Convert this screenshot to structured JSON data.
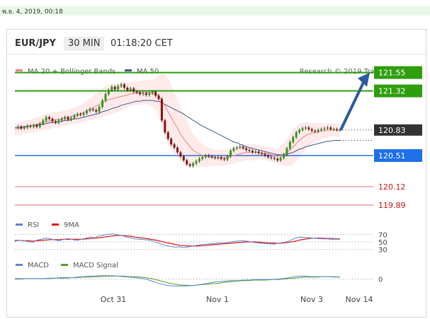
{
  "header": {
    "date_stamp": "พ.ย. 4, 2019, 00:18",
    "symbol": "EUR/JPY",
    "timeframe": "30 MIN",
    "clock": "01:18:20 CET"
  },
  "chart_data": {
    "type": "line",
    "legend": [
      {
        "label": "MA 20 + Bollinger Bands",
        "color": "#f08080"
      },
      {
        "label": "MA 50",
        "color": "#3b5a8c"
      }
    ],
    "watermark": "Research © 2019 Trading Central",
    "x_ticks": [
      "Oct 31",
      "Nov 1",
      "Nov 3",
      "Nov 14"
    ],
    "ylim": [
      119.8,
      121.75
    ],
    "price": [
      120.86,
      120.87,
      120.85,
      120.86,
      120.88,
      120.87,
      120.89,
      120.87,
      120.91,
      120.95,
      120.99,
      120.97,
      120.94,
      120.92,
      120.95,
      120.97,
      120.99,
      120.96,
      120.98,
      121.01,
      121.03,
      121.02,
      121.04,
      121.07,
      121.09,
      121.08,
      121.06,
      121.12,
      121.2,
      121.28,
      121.33,
      121.37,
      121.34,
      121.38,
      121.4,
      121.36,
      121.33,
      121.35,
      121.31,
      121.3,
      121.28,
      121.29,
      121.27,
      121.29,
      121.31,
      121.26,
      121.22,
      120.95,
      120.8,
      120.72,
      120.65,
      120.61,
      120.55,
      120.5,
      120.45,
      120.4,
      120.38,
      120.41,
      120.44,
      120.47,
      120.49,
      120.51,
      120.5,
      120.49,
      120.48,
      120.49,
      120.47,
      120.46,
      120.5,
      120.57,
      120.6,
      120.61,
      120.62,
      120.6,
      120.58,
      120.57,
      120.55,
      120.56,
      120.54,
      120.53,
      120.51,
      120.49,
      120.48,
      120.47,
      120.45,
      120.48,
      120.52,
      120.6,
      120.68,
      120.74,
      120.8,
      120.83,
      120.85,
      120.86,
      120.84,
      120.82,
      120.81,
      120.83,
      120.84,
      120.85,
      120.86,
      120.84,
      120.84,
      120.83,
      120.83
    ],
    "ma20": [
      120.84,
      120.85,
      120.85,
      120.86,
      120.87,
      120.88,
      120.89,
      120.9,
      120.91,
      120.92,
      120.93,
      120.94,
      120.95,
      120.96,
      120.96,
      120.97,
      120.98,
      120.99,
      121.0,
      121.01,
      121.02,
      121.03,
      121.05,
      121.07,
      121.09,
      121.11,
      121.13,
      121.15,
      121.17,
      121.19,
      121.21,
      121.22,
      121.23,
      121.24,
      121.25,
      121.26,
      121.27,
      121.28,
      121.29,
      121.29,
      121.3,
      121.3,
      121.3,
      121.3,
      121.29,
      121.28,
      121.26,
      121.2,
      121.13,
      121.06,
      120.99,
      120.92,
      120.85,
      120.78,
      120.72,
      120.67,
      120.62,
      120.58,
      120.55,
      120.53,
      120.51,
      120.5,
      120.49,
      120.49,
      120.48,
      120.48,
      120.48,
      120.48,
      120.49,
      120.5,
      120.51,
      120.52,
      120.53,
      120.54,
      120.55,
      120.55,
      120.55,
      120.55,
      120.55,
      120.54,
      120.54,
      120.53,
      120.52,
      120.51,
      120.5,
      120.51,
      120.52,
      120.55,
      120.58,
      120.62,
      120.66,
      120.7,
      120.73,
      120.76,
      120.78,
      120.79,
      120.8,
      120.81,
      120.82,
      120.82,
      120.83,
      120.83,
      120.83,
      120.83,
      120.83
    ],
    "ma50": [
      120.86,
      120.86,
      120.87,
      120.87,
      120.88,
      120.88,
      120.89,
      120.89,
      120.9,
      120.9,
      120.91,
      120.92,
      120.92,
      120.93,
      120.93,
      120.94,
      120.95,
      120.95,
      120.96,
      120.97,
      120.97,
      120.98,
      120.99,
      121.0,
      121.01,
      121.02,
      121.03,
      121.04,
      121.06,
      121.07,
      121.08,
      121.1,
      121.11,
      121.12,
      121.14,
      121.15,
      121.16,
      121.17,
      121.18,
      121.19,
      121.19,
      121.2,
      121.2,
      121.2,
      121.2,
      121.19,
      121.19,
      121.17,
      121.15,
      121.13,
      121.11,
      121.09,
      121.07,
      121.05,
      121.03,
      121.0,
      120.98,
      120.95,
      120.93,
      120.9,
      120.88,
      120.86,
      120.84,
      120.82,
      120.8,
      120.78,
      120.76,
      120.74,
      120.72,
      120.7,
      120.68,
      120.67,
      120.65,
      120.64,
      120.62,
      120.61,
      120.6,
      120.59,
      120.58,
      120.57,
      120.56,
      120.55,
      120.54,
      120.53,
      120.52,
      120.52,
      120.52,
      120.53,
      120.54,
      120.55,
      120.57,
      120.59,
      120.6,
      120.62,
      120.63,
      120.64,
      120.65,
      120.66,
      120.67,
      120.68,
      120.69,
      120.69,
      120.7,
      120.7,
      120.7
    ],
    "bb_width": [
      0.08,
      0.08,
      0.08,
      0.08,
      0.08,
      0.08,
      0.09,
      0.09,
      0.09,
      0.09,
      0.1,
      0.1,
      0.1,
      0.1,
      0.1,
      0.1,
      0.1,
      0.1,
      0.1,
      0.1,
      0.11,
      0.11,
      0.12,
      0.13,
      0.14,
      0.15,
      0.16,
      0.17,
      0.18,
      0.19,
      0.19,
      0.19,
      0.19,
      0.18,
      0.18,
      0.17,
      0.16,
      0.15,
      0.15,
      0.15,
      0.15,
      0.15,
      0.15,
      0.16,
      0.17,
      0.2,
      0.26,
      0.34,
      0.4,
      0.42,
      0.4,
      0.38,
      0.36,
      0.34,
      0.32,
      0.28,
      0.24,
      0.2,
      0.18,
      0.16,
      0.14,
      0.13,
      0.12,
      0.11,
      0.1,
      0.1,
      0.1,
      0.1,
      0.1,
      0.1,
      0.1,
      0.1,
      0.1,
      0.1,
      0.1,
      0.1,
      0.1,
      0.1,
      0.09,
      0.09,
      0.09,
      0.09,
      0.09,
      0.09,
      0.1,
      0.12,
      0.14,
      0.17,
      0.2,
      0.22,
      0.22,
      0.21,
      0.19,
      0.17,
      0.15,
      0.13,
      0.12,
      0.11,
      0.1,
      0.09,
      0.09,
      0.08,
      0.08,
      0.08,
      0.08
    ],
    "current_price": "120.83",
    "projection_target": 121.55,
    "resistances": [
      {
        "label": "121.55",
        "value": 121.55
      },
      {
        "label": "121.32",
        "value": 121.32
      }
    ],
    "supports": [
      {
        "label": "120.51",
        "value": 120.51
      },
      {
        "label": "120.12",
        "value": 120.12
      },
      {
        "label": "119.89",
        "value": 119.89
      }
    ],
    "rsi_panel": {
      "legend": [
        {
          "label": "RSI",
          "color": "#5a86d6"
        },
        {
          "label": "9MA",
          "color": "#e01010"
        }
      ],
      "ylim": [
        20,
        80
      ],
      "levels": [
        {
          "label": "70",
          "value": 70
        },
        {
          "label": "50",
          "value": 50
        },
        {
          "label": "30",
          "value": 30
        }
      ],
      "rsi": [
        52,
        54,
        53,
        51,
        49,
        55,
        57,
        60,
        58,
        55,
        53,
        57,
        59,
        56,
        54,
        57,
        60,
        63,
        61,
        66,
        68,
        70,
        71,
        69,
        67,
        63,
        61,
        58,
        57,
        56,
        55,
        52,
        48,
        44,
        40,
        38,
        36,
        37,
        35,
        37,
        39,
        41,
        43,
        44,
        45,
        46,
        47,
        47,
        49,
        51,
        52,
        53,
        52,
        50,
        48,
        47,
        46,
        45,
        44,
        46,
        48,
        50,
        55,
        60,
        63,
        62,
        61,
        60,
        59,
        58,
        58,
        57,
        57,
        57
      ],
      "ma9": [
        54,
        54,
        53,
        53,
        52,
        53,
        54,
        55,
        56,
        56,
        56,
        57,
        57,
        57,
        57,
        57,
        58,
        59,
        60,
        61,
        63,
        64,
        66,
        67,
        67,
        66,
        65,
        63,
        61,
        60,
        58,
        56,
        54,
        51,
        48,
        46,
        43,
        41,
        40,
        39,
        39,
        39,
        40,
        41,
        42,
        43,
        44,
        45,
        46,
        47,
        48,
        49,
        50,
        50,
        50,
        49,
        48,
        47,
        47,
        46,
        47,
        48,
        50,
        52,
        55,
        57,
        59,
        60,
        60,
        60,
        59,
        59,
        58,
        58
      ]
    },
    "macd_panel": {
      "legend": [
        {
          "label": "MACD",
          "color": "#5a86d6"
        },
        {
          "label": "MACD Signal",
          "color": "#55a022"
        }
      ],
      "ylim": [
        -0.22,
        0.18
      ],
      "zero_label": "0",
      "macd": [
        0.0,
        0.0,
        0.01,
        0.01,
        0.01,
        0.01,
        0.02,
        0.02,
        0.03,
        0.03,
        0.03,
        0.04,
        0.05,
        0.06,
        0.06,
        0.07,
        0.07,
        0.07,
        0.06,
        0.05,
        0.04,
        0.03,
        0.02,
        0.0,
        -0.04,
        -0.08,
        -0.11,
        -0.13,
        -0.14,
        -0.14,
        -0.14,
        -0.13,
        -0.12,
        -0.1,
        -0.08,
        -0.06,
        -0.05,
        -0.04,
        -0.03,
        -0.03,
        -0.02,
        -0.02,
        -0.01,
        -0.01,
        -0.01,
        -0.01,
        0.0,
        0.01,
        0.03,
        0.05,
        0.06,
        0.06,
        0.05,
        0.05,
        0.05,
        0.05,
        0.04,
        0.04
      ],
      "signal": [
        0.01,
        0.01,
        0.01,
        0.01,
        0.01,
        0.01,
        0.01,
        0.02,
        0.02,
        0.02,
        0.03,
        0.03,
        0.04,
        0.04,
        0.05,
        0.05,
        0.06,
        0.06,
        0.06,
        0.06,
        0.05,
        0.05,
        0.04,
        0.03,
        0.01,
        -0.02,
        -0.05,
        -0.08,
        -0.1,
        -0.12,
        -0.12,
        -0.13,
        -0.12,
        -0.11,
        -0.1,
        -0.09,
        -0.08,
        -0.06,
        -0.05,
        -0.04,
        -0.03,
        -0.03,
        -0.02,
        -0.02,
        -0.02,
        -0.01,
        -0.01,
        0.0,
        0.01,
        0.02,
        0.03,
        0.04,
        0.04,
        0.04,
        0.05,
        0.05,
        0.05,
        0.04
      ]
    }
  }
}
